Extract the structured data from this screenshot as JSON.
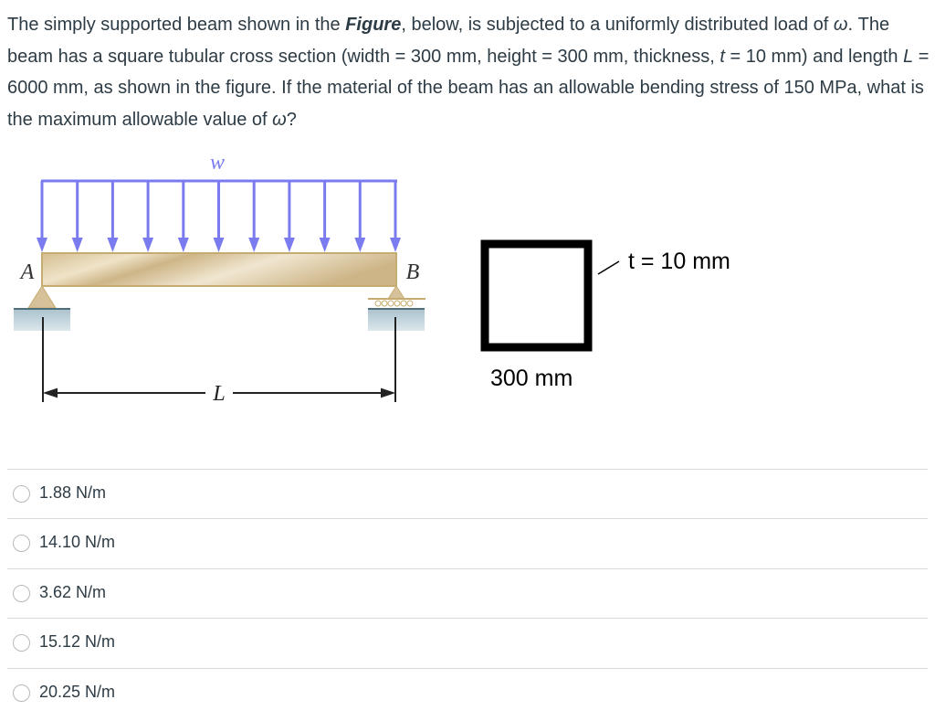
{
  "question": {
    "p1": "The simply supported beam shown in the ",
    "figure_word": "Figure",
    "p2": ", below, is subjected to a uniformly distributed load of ",
    "omega": "ω",
    "p3": ". The beam has a square tubular cross section (width = 300 mm, height = 300 mm, thickness, ",
    "t": "t",
    "p4": " = 10 mm) and length ",
    "L": "L",
    "p5": " = 6000 mm, as shown in the figure. If the material of the beam has an allowable bending stress of 150 MPa, what is the maximum allowable value of ",
    "omega2": "ω",
    "p6": "?"
  },
  "figure": {
    "load_label": "w",
    "support_a": "A",
    "support_b": "B",
    "length_label": "L",
    "thickness_label": "t = 10 mm",
    "width_label": "300 mm",
    "colors": {
      "load": "#7b7bf0",
      "beam": "#d8c39a",
      "ground": "#b5ccd6"
    }
  },
  "options": [
    {
      "label": "1.88 N/m"
    },
    {
      "label": "14.10 N/m"
    },
    {
      "label": "3.62 N/m"
    },
    {
      "label": "15.12 N/m"
    },
    {
      "label": "20.25 N/m"
    }
  ]
}
